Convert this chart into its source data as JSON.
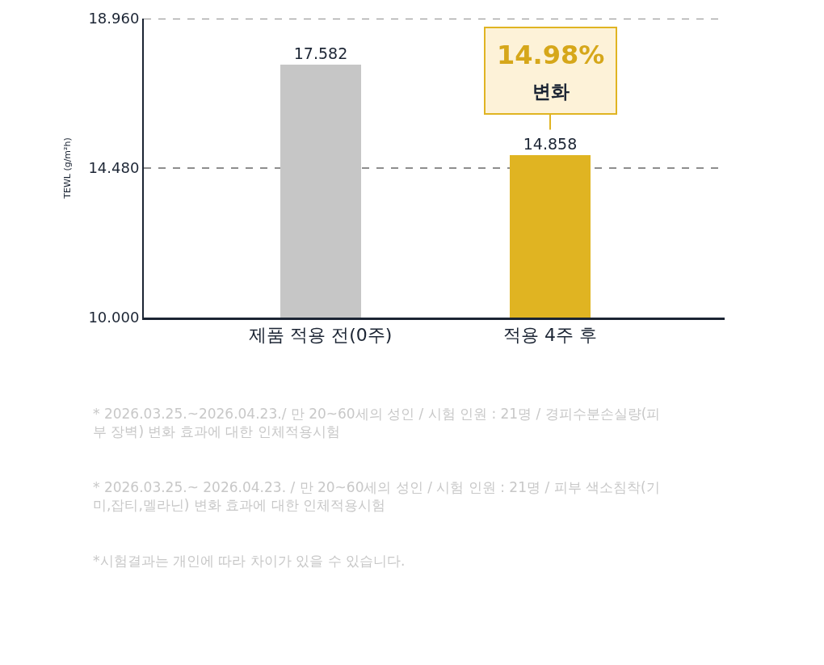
{
  "chart_data": {
    "type": "bar",
    "ylabel": "TEWL (g/m²h)",
    "categories": [
      "제품 적용 전(0주)",
      "적용 4주 후"
    ],
    "values": [
      17.582,
      14.858
    ],
    "colors": [
      "#c6c6c6",
      "#e0b422"
    ],
    "data_labels": true,
    "ylim": [
      10,
      18.96
    ],
    "yticks": [
      {
        "value": 10,
        "label": "10.000"
      },
      {
        "value": 14.48,
        "label": "14.480"
      },
      {
        "value": 18.96,
        "label": "18.960"
      }
    ],
    "grid": "y",
    "annotations": [
      {
        "text": "14.98%\n변화",
        "x": "적용 4주 후",
        "y": 14.858
      },
      "* 2026.03.25.~2026.04.23./ 만 20~60세의 성인 / 시험 인원 : 21명 / 경피수분손실량(피\n부 장벽) 변화 효과에 대한 인체적용시험",
      "* 2026.03.25.~ 2026.04.23. / 만 20~60세의 성인 / 시험 인원 : 21명 / 피부 색소침착(기\n미,잡티,멜라닌) 변화 효과에 대한 인체적용시험",
      "*시험결과는 개인에 따라 차이가 있을 수 있습니다."
    ]
  }
}
